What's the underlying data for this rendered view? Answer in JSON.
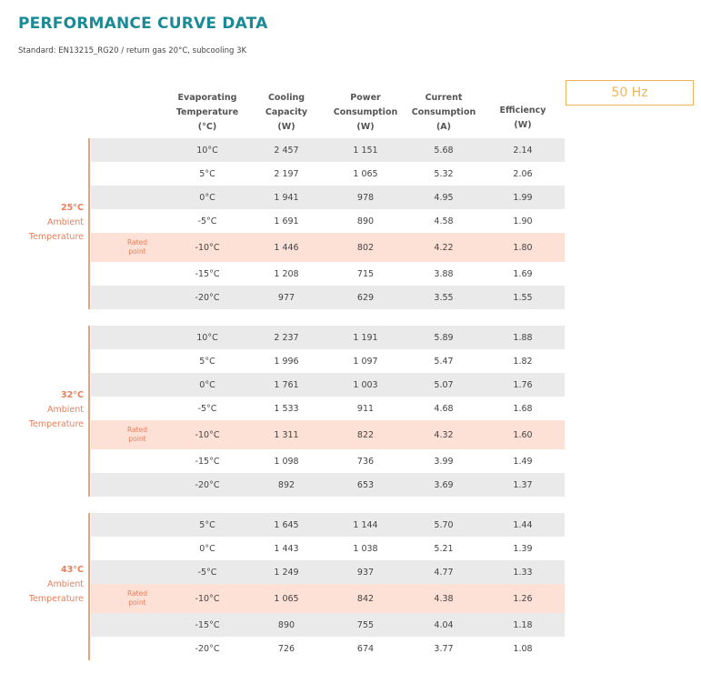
{
  "title": "PERFORMANCE CURVE DATA",
  "subtitle": "Standard: EN13215_RG20 / return gas 20°C, subcooling 3K",
  "frequency": "50 Hz",
  "headers": [
    [
      "Evaporating",
      "Temperature",
      "(°C)"
    ],
    [
      "Cooling",
      "Capacity",
      "(W)"
    ],
    [
      "Power",
      "Consumption",
      "(W)"
    ],
    [
      "Current",
      "Consumption",
      "(A)"
    ],
    [
      "Efficiency",
      "(W)"
    ]
  ],
  "rated_label": [
    "Rated",
    "point"
  ],
  "groups": [
    {
      "ambient": [
        "25°C",
        "Ambient",
        "Temperature"
      ],
      "rows": [
        [
          "10°C",
          "2 457",
          "1 151",
          "5.68",
          "2.14"
        ],
        [
          "5°C",
          "2 197",
          "1 065",
          "5.32",
          "2.06"
        ],
        [
          "0°C",
          "1 941",
          "978",
          "4.95",
          "1.99"
        ],
        [
          "-5°C",
          "1 691",
          "890",
          "4.58",
          "1.90"
        ],
        [
          "-10°C",
          "1 446",
          "802",
          "4.22",
          "1.80"
        ],
        [
          "-15°C",
          "1 208",
          "715",
          "3.88",
          "1.69"
        ],
        [
          "-20°C",
          "977",
          "629",
          "3.55",
          "1.55"
        ]
      ],
      "rated_index": 4
    },
    {
      "ambient": [
        "32°C",
        "Ambient",
        "Temperature"
      ],
      "rows": [
        [
          "10°C",
          "2 237",
          "1 191",
          "5.89",
          "1.88"
        ],
        [
          "5°C",
          "1 996",
          "1 097",
          "5.47",
          "1.82"
        ],
        [
          "0°C",
          "1 761",
          "1 003",
          "5.07",
          "1.76"
        ],
        [
          "-5°C",
          "1 533",
          "911",
          "4.68",
          "1.68"
        ],
        [
          "-10°C",
          "1 311",
          "822",
          "4.32",
          "1.60"
        ],
        [
          "-15°C",
          "1 098",
          "736",
          "3.99",
          "1.49"
        ],
        [
          "-20°C",
          "892",
          "653",
          "3.69",
          "1.37"
        ]
      ],
      "rated_index": 4
    },
    {
      "ambient": [
        "43°C",
        "Ambient",
        "Temperature"
      ],
      "rows": [
        [
          "5°C",
          "1 645",
          "1 144",
          "5.70",
          "1.44"
        ],
        [
          "0°C",
          "1 443",
          "1 038",
          "5.21",
          "1.39"
        ],
        [
          "-5°C",
          "1 249",
          "937",
          "4.77",
          "1.33"
        ],
        [
          "-10°C",
          "1 065",
          "842",
          "4.38",
          "1.26"
        ],
        [
          "-15°C",
          "890",
          "755",
          "4.04",
          "1.18"
        ],
        [
          "-20°C",
          "726",
          "674",
          "3.77",
          "1.08"
        ]
      ],
      "rated_index": 3
    }
  ],
  "colors": {
    "title": "#1b8a95",
    "accent": "#e8805c",
    "rated_bg": "#fde0d6",
    "gray_bg": "#eaeaea",
    "hz": "#f0b55c"
  }
}
